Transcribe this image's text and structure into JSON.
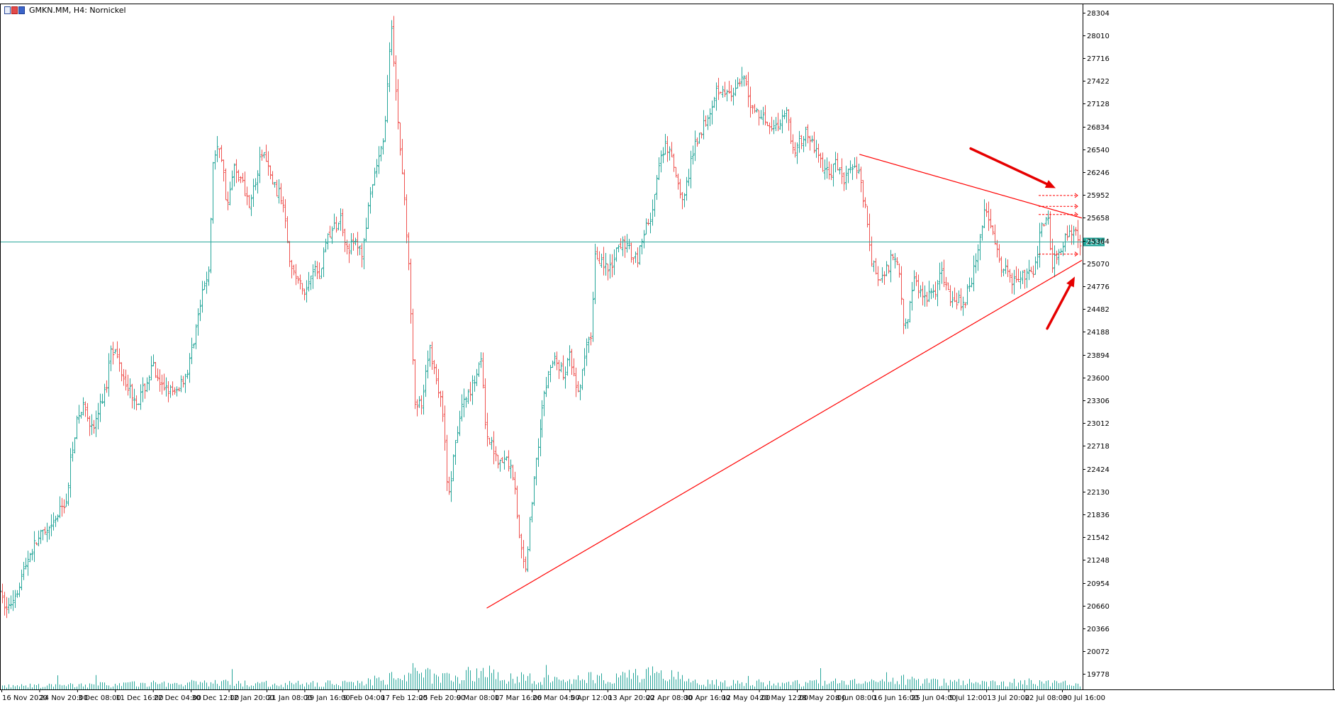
{
  "header": {
    "symbol_label": "GMKN.MM, H4:  Nornickel",
    "icon": "chart-window-icon"
  },
  "colors": {
    "bull": "#26a69a",
    "bear": "#ef5350",
    "volume": "#26a69a",
    "grid_axis": "#000000",
    "price_line": "#26a69a",
    "trendline": "#ff0000",
    "arrow": "#e60000"
  },
  "chart_data": {
    "type": "candlestick",
    "title": "GMKN.MM, H4:  Nornickel",
    "timeframe": "H4",
    "ylim": [
      19580,
      28400
    ],
    "y_ticks": [
      28304,
      28010,
      27716,
      27422,
      27128,
      26834,
      26540,
      26246,
      25952,
      25658,
      25364,
      25070,
      24776,
      24482,
      24188,
      23894,
      23600,
      23306,
      23012,
      22718,
      22424,
      22130,
      21836,
      21542,
      21248,
      20954,
      20660,
      20366,
      20072,
      19778
    ],
    "x_ticks": [
      "16 Nov 2020",
      "24 Nov 20:00",
      "3 Dec 08:00",
      "11 Dec 16:00",
      "22 Dec 04:00",
      "30 Dec 12:00",
      "12 Jan 20:00",
      "21 Jan 08:00",
      "29 Jan 16:00",
      "9 Feb 04:00",
      "17 Feb 12:00",
      "25 Feb 20:00",
      "9 Mar 08:00",
      "17 Mar 16:00",
      "26 Mar 04:00",
      "5 Apr 12:00",
      "13 Apr 20:00",
      "22 Apr 08:00",
      "30 Apr 16:00",
      "12 May 04:00",
      "20 May 12:00",
      "28 May 20:00",
      "8 Jun 08:00",
      "16 Jun 16:00",
      "25 Jun 04:00",
      "5 Jul 12:00",
      "13 Jul 20:00",
      "22 Jul 08:00",
      "30 Jul 16:00"
    ],
    "current_price": 25346,
    "price_path": [
      [
        0,
        20780
      ],
      [
        10,
        20600
      ],
      [
        25,
        20900
      ],
      [
        40,
        21300
      ],
      [
        55,
        21550
      ],
      [
        70,
        21600
      ],
      [
        85,
        21900
      ],
      [
        95,
        22050
      ],
      [
        100,
        22650
      ],
      [
        110,
        23100
      ],
      [
        120,
        23250
      ],
      [
        130,
        22900
      ],
      [
        140,
        23200
      ],
      [
        150,
        23500
      ],
      [
        155,
        24050
      ],
      [
        165,
        23850
      ],
      [
        175,
        23600
      ],
      [
        185,
        23400
      ],
      [
        195,
        23300
      ],
      [
        205,
        23500
      ],
      [
        215,
        23750
      ],
      [
        225,
        23450
      ],
      [
        235,
        23500
      ],
      [
        245,
        23350
      ],
      [
        255,
        23550
      ],
      [
        265,
        23700
      ],
      [
        275,
        24200
      ],
      [
        285,
        24650
      ],
      [
        295,
        25050
      ],
      [
        300,
        26400
      ],
      [
        310,
        26600
      ],
      [
        320,
        25800
      ],
      [
        330,
        26300
      ],
      [
        340,
        26150
      ],
      [
        350,
        25850
      ],
      [
        360,
        26100
      ],
      [
        370,
        26550
      ],
      [
        380,
        26200
      ],
      [
        390,
        26000
      ],
      [
        400,
        25850
      ],
      [
        410,
        25000
      ],
      [
        420,
        24850
      ],
      [
        430,
        24650
      ],
      [
        440,
        25050
      ],
      [
        450,
        24900
      ],
      [
        460,
        25400
      ],
      [
        470,
        25500
      ],
      [
        480,
        25650
      ],
      [
        490,
        25250
      ],
      [
        500,
        25350
      ],
      [
        510,
        25200
      ],
      [
        520,
        25800
      ],
      [
        530,
        26300
      ],
      [
        540,
        26600
      ],
      [
        548,
        27600
      ],
      [
        552,
        28150
      ],
      [
        560,
        27000
      ],
      [
        570,
        25900
      ],
      [
        578,
        24700
      ],
      [
        585,
        23300
      ],
      [
        595,
        23200
      ],
      [
        605,
        24000
      ],
      [
        615,
        23600
      ],
      [
        625,
        23100
      ],
      [
        632,
        22000
      ],
      [
        640,
        22600
      ],
      [
        650,
        23200
      ],
      [
        660,
        23400
      ],
      [
        670,
        23600
      ],
      [
        678,
        23900
      ],
      [
        685,
        22800
      ],
      [
        695,
        22700
      ],
      [
        705,
        22500
      ],
      [
        715,
        22550
      ],
      [
        725,
        22300
      ],
      [
        732,
        21500
      ],
      [
        740,
        21100
      ],
      [
        748,
        21800
      ],
      [
        755,
        22500
      ],
      [
        765,
        23200
      ],
      [
        775,
        23700
      ],
      [
        785,
        23850
      ],
      [
        795,
        23600
      ],
      [
        805,
        23900
      ],
      [
        815,
        23300
      ],
      [
        825,
        23850
      ],
      [
        835,
        24200
      ],
      [
        840,
        25200
      ],
      [
        850,
        25100
      ],
      [
        860,
        24950
      ],
      [
        870,
        25200
      ],
      [
        880,
        25350
      ],
      [
        890,
        25200
      ],
      [
        900,
        25150
      ],
      [
        910,
        25500
      ],
      [
        920,
        25700
      ],
      [
        930,
        26300
      ],
      [
        940,
        26600
      ],
      [
        950,
        26350
      ],
      [
        960,
        25900
      ],
      [
        970,
        26100
      ],
      [
        980,
        26600
      ],
      [
        990,
        26800
      ],
      [
        1000,
        27000
      ],
      [
        1010,
        27300
      ],
      [
        1020,
        27350
      ],
      [
        1030,
        27200
      ],
      [
        1040,
        27300
      ],
      [
        1050,
        27450
      ],
      [
        1060,
        27100
      ],
      [
        1070,
        27000
      ],
      [
        1080,
        26950
      ],
      [
        1090,
        26800
      ],
      [
        1100,
        26900
      ],
      [
        1110,
        27050
      ],
      [
        1120,
        26500
      ],
      [
        1130,
        26650
      ],
      [
        1140,
        26750
      ],
      [
        1150,
        26550
      ],
      [
        1160,
        26350
      ],
      [
        1170,
        26200
      ],
      [
        1180,
        26350
      ],
      [
        1190,
        26150
      ],
      [
        1200,
        26250
      ],
      [
        1210,
        26350
      ],
      [
        1220,
        25850
      ],
      [
        1230,
        25100
      ],
      [
        1240,
        24850
      ],
      [
        1250,
        24950
      ],
      [
        1260,
        25200
      ],
      [
        1270,
        24950
      ],
      [
        1275,
        24300
      ],
      [
        1280,
        24350
      ],
      [
        1290,
        24850
      ],
      [
        1300,
        24700
      ],
      [
        1310,
        24650
      ],
      [
        1320,
        24750
      ],
      [
        1330,
        24950
      ],
      [
        1340,
        24650
      ],
      [
        1350,
        24600
      ],
      [
        1360,
        24550
      ],
      [
        1370,
        24850
      ],
      [
        1380,
        25250
      ],
      [
        1390,
        25750
      ],
      [
        1400,
        25600
      ],
      [
        1410,
        25050
      ],
      [
        1420,
        24950
      ],
      [
        1430,
        24850
      ],
      [
        1440,
        24950
      ],
      [
        1450,
        24900
      ],
      [
        1460,
        24950
      ],
      [
        1470,
        25600
      ],
      [
        1478,
        25700
      ],
      [
        1485,
        25050
      ],
      [
        1495,
        25250
      ],
      [
        1505,
        25450
      ],
      [
        1515,
        25500
      ],
      [
        1524,
        25346
      ]
    ],
    "volume_profile": [
      [
        0,
        0.15
      ],
      [
        100,
        0.2
      ],
      [
        200,
        0.25
      ],
      [
        300,
        0.3
      ],
      [
        400,
        0.25
      ],
      [
        500,
        0.3
      ],
      [
        560,
        0.55
      ],
      [
        580,
        0.8
      ],
      [
        620,
        0.6
      ],
      [
        680,
        0.75
      ],
      [
        740,
        0.5
      ],
      [
        800,
        0.4
      ],
      [
        840,
        0.6
      ],
      [
        930,
        0.7
      ],
      [
        1000,
        0.3
      ],
      [
        1100,
        0.3
      ],
      [
        1200,
        0.3
      ],
      [
        1270,
        0.45
      ],
      [
        1300,
        0.35
      ],
      [
        1400,
        0.3
      ],
      [
        1480,
        0.35
      ],
      [
        1524,
        0.2
      ]
    ],
    "trendlines": [
      {
        "from": [
          687,
          20628
        ],
        "to": [
          1527,
          25110
        ]
      },
      {
        "from": [
          1213,
          26475
        ],
        "to": [
          1527,
          25655
        ]
      }
    ],
    "dashed_levels": [
      25945,
      25805,
      25700,
      25190
    ],
    "arrows": [
      {
        "from": [
          1370,
          26550
        ],
        "to": [
          1490,
          26040
        ]
      },
      {
        "from": [
          1478,
          24230
        ],
        "to": [
          1517,
          24900
        ]
      }
    ]
  }
}
